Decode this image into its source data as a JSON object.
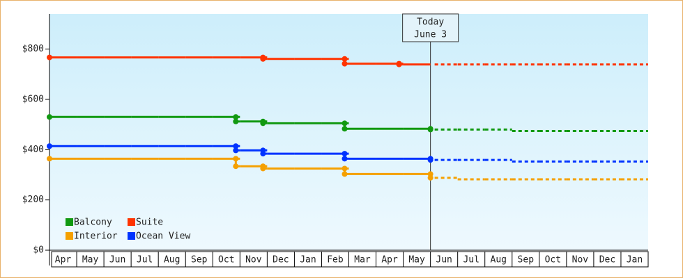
{
  "chart_data": {
    "type": "step",
    "categories": [
      "Apr",
      "May",
      "Jun",
      "Jul",
      "Aug",
      "Sep",
      "Oct",
      "Nov",
      "Dec",
      "Jan",
      "Feb",
      "Mar",
      "Apr",
      "May",
      "Jun",
      "Jul",
      "Aug",
      "Sep",
      "Oct",
      "Nov",
      "Dec",
      "Jan"
    ],
    "series": [
      {
        "name": "Balcony",
        "color": "#119911",
        "values": [
          530,
          530,
          530,
          530,
          530,
          530,
          530,
          512,
          505,
          505,
          505,
          483,
          483,
          483,
          480,
          480,
          480,
          474,
          474,
          474,
          474,
          474
        ]
      },
      {
        "name": "Suite",
        "color": "#ff3300",
        "values": [
          767,
          767,
          767,
          767,
          767,
          767,
          767,
          767,
          761,
          761,
          761,
          742,
          742,
          739,
          739,
          739,
          739,
          739,
          739,
          739,
          739,
          739
        ]
      },
      {
        "name": "Interior",
        "color": "#f5a000",
        "values": [
          364,
          364,
          364,
          364,
          364,
          364,
          364,
          334,
          325,
          325,
          325,
          303,
          303,
          303,
          288,
          282,
          282,
          282,
          282,
          282,
          282,
          282
        ]
      },
      {
        "name": "Ocean View",
        "color": "#0033ff",
        "values": [
          414,
          414,
          414,
          414,
          414,
          414,
          414,
          397,
          384,
          384,
          384,
          364,
          364,
          364,
          359,
          359,
          359,
          353,
          353,
          353,
          353,
          353
        ]
      }
    ],
    "annotation": {
      "text": [
        "Today",
        "June 3"
      ],
      "category": "Jun",
      "index": 14
    },
    "ylim": [
      0,
      940
    ],
    "yticks": [
      {
        "value": 0,
        "label": "$0"
      },
      {
        "value": 200,
        "label": "$200"
      },
      {
        "value": 400,
        "label": "$400"
      },
      {
        "value": 600,
        "label": "$600"
      },
      {
        "value": 800,
        "label": "$800"
      }
    ],
    "legend": "bottom-left"
  }
}
